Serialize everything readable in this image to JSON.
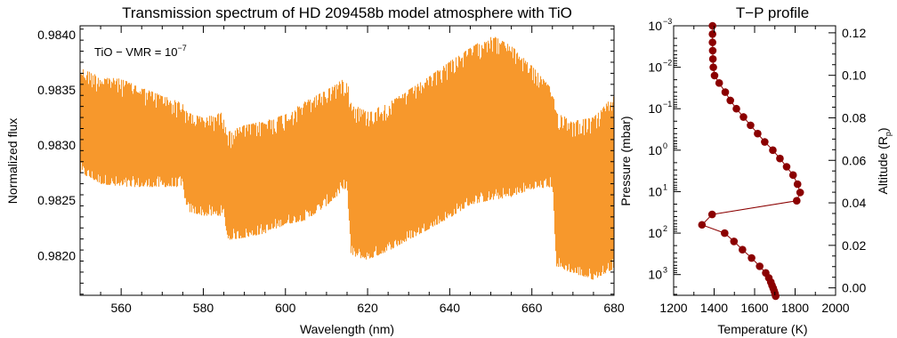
{
  "chart_data": [
    {
      "type": "line",
      "title": "Transmission spectrum of HD 209458b model atmosphere with TiO",
      "xlabel": "Wavelength (nm)",
      "ylabel": "Normalized flux",
      "annotation": {
        "text": "TiO − VMR = 10",
        "exponent": "−7"
      },
      "xlim": [
        550,
        680
      ],
      "ylim": [
        0.98164,
        0.98408
      ],
      "x_ticks": [
        560,
        580,
        600,
        620,
        640,
        660,
        680
      ],
      "x_tick_labels": [
        "560",
        "580",
        "600",
        "620",
        "640",
        "660",
        "680"
      ],
      "y_ticks": [
        0.982,
        0.9825,
        0.983,
        0.9835,
        0.984
      ],
      "y_tick_labels": [
        "0.9820",
        "0.9825",
        "0.9830",
        "0.9835",
        "0.9840"
      ],
      "grid": false,
      "color": "#f7982c",
      "series": [
        {
          "name": "",
          "x": [
            550,
            555,
            560,
            565,
            570,
            575,
            576,
            580,
            585,
            586,
            590,
            595,
            600,
            605,
            610,
            615,
            616,
            620,
            625,
            630,
            635,
            640,
            645,
            650,
            655,
            660,
            665,
            666,
            670,
            675,
            680
          ],
          "upper": [
            0.9837,
            0.98362,
            0.9836,
            0.98352,
            0.98345,
            0.98338,
            0.9833,
            0.98325,
            0.9833,
            0.98312,
            0.98318,
            0.98322,
            0.98328,
            0.9834,
            0.9835,
            0.98362,
            0.98338,
            0.9833,
            0.98338,
            0.9835,
            0.98362,
            0.98376,
            0.98388,
            0.984,
            0.9839,
            0.98372,
            0.9835,
            0.9833,
            0.98322,
            0.98325,
            0.98345
          ],
          "lower": [
            0.98275,
            0.98265,
            0.98262,
            0.98262,
            0.98262,
            0.98262,
            0.9824,
            0.98236,
            0.98236,
            0.98214,
            0.98216,
            0.9822,
            0.98228,
            0.98232,
            0.98245,
            0.98262,
            0.982,
            0.98196,
            0.98204,
            0.98214,
            0.98224,
            0.98234,
            0.98246,
            0.9825,
            0.98253,
            0.9826,
            0.98262,
            0.9819,
            0.98184,
            0.98178,
            0.98188
          ]
        }
      ]
    },
    {
      "type": "scatter",
      "title": "T−P profile",
      "xlabel": "Temperature (K)",
      "ylabel": "Pressure (mbar)",
      "y2label": "Altitude (R",
      "y2label_sub": "p",
      "y2label_close": ")",
      "xlim": [
        1200,
        2000
      ],
      "ylim": [
        -3,
        3.5
      ],
      "y_scale": "log",
      "y_inverted": true,
      "x_ticks": [
        1200,
        1400,
        1600,
        1800,
        2000
      ],
      "x_tick_labels": [
        "1200",
        "1400",
        "1600",
        "1800",
        "2000"
      ],
      "y_ticks": [
        -3,
        -2,
        -1,
        0,
        1,
        2,
        3
      ],
      "y_tick_bases": [
        "10",
        "10",
        "10",
        "10",
        "10",
        "10",
        "10"
      ],
      "y_tick_exponents": [
        "−3",
        "−2",
        "−1",
        "0",
        "1",
        "2",
        "3"
      ],
      "y2_ticks": [
        0.0,
        0.02,
        0.04,
        0.06,
        0.08,
        0.1,
        0.12
      ],
      "y2_tick_labels": [
        "0.00",
        "0.02",
        "0.04",
        "0.06",
        "0.08",
        "0.10",
        "0.12"
      ],
      "y2lim": [
        -0.0035,
        0.1233
      ],
      "color": "#8b0000",
      "points": [
        {
          "T": 1392,
          "logP": -3.0
        },
        {
          "T": 1392,
          "logP": -2.8
        },
        {
          "T": 1392,
          "logP": -2.6
        },
        {
          "T": 1393,
          "logP": -2.4
        },
        {
          "T": 1394,
          "logP": -2.2
        },
        {
          "T": 1396,
          "logP": -2.0
        },
        {
          "T": 1402,
          "logP": -1.8
        },
        {
          "T": 1425,
          "logP": -1.62
        },
        {
          "T": 1455,
          "logP": -1.4
        },
        {
          "T": 1480,
          "logP": -1.2
        },
        {
          "T": 1510,
          "logP": -1.0
        },
        {
          "T": 1545,
          "logP": -0.8
        },
        {
          "T": 1580,
          "logP": -0.6
        },
        {
          "T": 1615,
          "logP": -0.4
        },
        {
          "T": 1650,
          "logP": -0.2
        },
        {
          "T": 1690,
          "logP": 0.0
        },
        {
          "T": 1725,
          "logP": 0.2
        },
        {
          "T": 1758,
          "logP": 0.4
        },
        {
          "T": 1790,
          "logP": 0.6
        },
        {
          "T": 1812,
          "logP": 0.82
        },
        {
          "T": 1825,
          "logP": 1.02
        },
        {
          "T": 1808,
          "logP": 1.22
        },
        {
          "T": 1390,
          "logP": 1.55
        },
        {
          "T": 1340,
          "logP": 1.8
        },
        {
          "T": 1452,
          "logP": 2.0
        },
        {
          "T": 1498,
          "logP": 2.2
        },
        {
          "T": 1540,
          "logP": 2.4
        },
        {
          "T": 1585,
          "logP": 2.6
        },
        {
          "T": 1625,
          "logP": 2.8
        },
        {
          "T": 1655,
          "logP": 2.96
        },
        {
          "T": 1670,
          "logP": 3.08
        },
        {
          "T": 1680,
          "logP": 3.18
        },
        {
          "T": 1686,
          "logP": 3.26
        },
        {
          "T": 1692,
          "logP": 3.33
        },
        {
          "T": 1697,
          "logP": 3.4
        },
        {
          "T": 1701,
          "logP": 3.46
        },
        {
          "T": 1704,
          "logP": 3.52
        }
      ]
    }
  ]
}
